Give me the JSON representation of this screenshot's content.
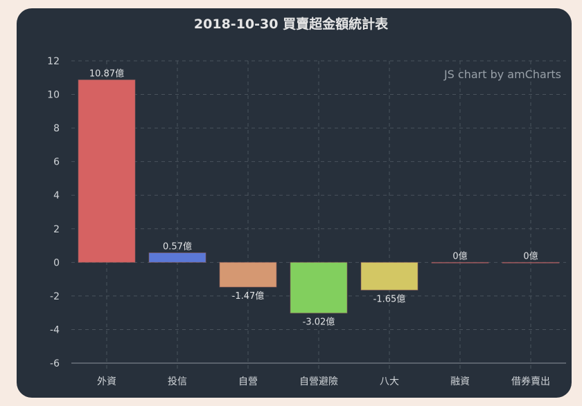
{
  "chart_data": {
    "type": "bar",
    "title": "2018-10-30 買賣超金額統計表",
    "credit": "JS chart by amCharts",
    "categories": [
      "外資",
      "投信",
      "自營",
      "自營避險",
      "八大",
      "融資",
      "借券賣出"
    ],
    "values": [
      10.87,
      0.57,
      -1.47,
      -3.02,
      -1.65,
      0,
      0
    ],
    "labels": [
      "10.87億",
      "0.57億",
      "-1.47億",
      "-3.02億",
      "-1.65億",
      "0億",
      "0億"
    ],
    "colors": [
      "#d66262",
      "#5b78d6",
      "#d59872",
      "#82cf5e",
      "#d3c764",
      "#d65a6a",
      "#d65a6a"
    ],
    "unit": "億",
    "xlabel": "",
    "ylabel": "",
    "ylim": [
      -6,
      12
    ],
    "yticks": [
      12,
      10,
      8,
      6,
      4,
      2,
      0,
      -2,
      -4,
      -6
    ],
    "grid": true,
    "legend": null
  }
}
